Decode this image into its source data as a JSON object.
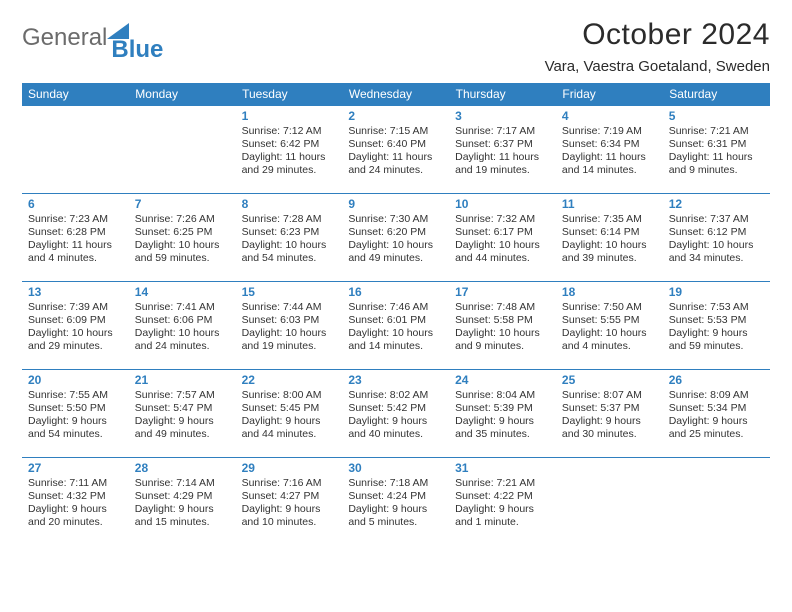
{
  "logo": {
    "general": "General",
    "blue": "Blue"
  },
  "title": "October 2024",
  "location": "Vara, Vaestra Goetaland, Sweden",
  "colors": {
    "accent": "#2f7fbf",
    "text": "#333333",
    "bg": "#ffffff"
  },
  "day_headers": [
    "Sunday",
    "Monday",
    "Tuesday",
    "Wednesday",
    "Thursday",
    "Friday",
    "Saturday"
  ],
  "weeks": [
    [
      null,
      null,
      {
        "n": "1",
        "sr": "Sunrise: 7:12 AM",
        "ss": "Sunset: 6:42 PM",
        "d1": "Daylight: 11 hours",
        "d2": "and 29 minutes."
      },
      {
        "n": "2",
        "sr": "Sunrise: 7:15 AM",
        "ss": "Sunset: 6:40 PM",
        "d1": "Daylight: 11 hours",
        "d2": "and 24 minutes."
      },
      {
        "n": "3",
        "sr": "Sunrise: 7:17 AM",
        "ss": "Sunset: 6:37 PM",
        "d1": "Daylight: 11 hours",
        "d2": "and 19 minutes."
      },
      {
        "n": "4",
        "sr": "Sunrise: 7:19 AM",
        "ss": "Sunset: 6:34 PM",
        "d1": "Daylight: 11 hours",
        "d2": "and 14 minutes."
      },
      {
        "n": "5",
        "sr": "Sunrise: 7:21 AM",
        "ss": "Sunset: 6:31 PM",
        "d1": "Daylight: 11 hours",
        "d2": "and 9 minutes."
      }
    ],
    [
      {
        "n": "6",
        "sr": "Sunrise: 7:23 AM",
        "ss": "Sunset: 6:28 PM",
        "d1": "Daylight: 11 hours",
        "d2": "and 4 minutes."
      },
      {
        "n": "7",
        "sr": "Sunrise: 7:26 AM",
        "ss": "Sunset: 6:25 PM",
        "d1": "Daylight: 10 hours",
        "d2": "and 59 minutes."
      },
      {
        "n": "8",
        "sr": "Sunrise: 7:28 AM",
        "ss": "Sunset: 6:23 PM",
        "d1": "Daylight: 10 hours",
        "d2": "and 54 minutes."
      },
      {
        "n": "9",
        "sr": "Sunrise: 7:30 AM",
        "ss": "Sunset: 6:20 PM",
        "d1": "Daylight: 10 hours",
        "d2": "and 49 minutes."
      },
      {
        "n": "10",
        "sr": "Sunrise: 7:32 AM",
        "ss": "Sunset: 6:17 PM",
        "d1": "Daylight: 10 hours",
        "d2": "and 44 minutes."
      },
      {
        "n": "11",
        "sr": "Sunrise: 7:35 AM",
        "ss": "Sunset: 6:14 PM",
        "d1": "Daylight: 10 hours",
        "d2": "and 39 minutes."
      },
      {
        "n": "12",
        "sr": "Sunrise: 7:37 AM",
        "ss": "Sunset: 6:12 PM",
        "d1": "Daylight: 10 hours",
        "d2": "and 34 minutes."
      }
    ],
    [
      {
        "n": "13",
        "sr": "Sunrise: 7:39 AM",
        "ss": "Sunset: 6:09 PM",
        "d1": "Daylight: 10 hours",
        "d2": "and 29 minutes."
      },
      {
        "n": "14",
        "sr": "Sunrise: 7:41 AM",
        "ss": "Sunset: 6:06 PM",
        "d1": "Daylight: 10 hours",
        "d2": "and 24 minutes."
      },
      {
        "n": "15",
        "sr": "Sunrise: 7:44 AM",
        "ss": "Sunset: 6:03 PM",
        "d1": "Daylight: 10 hours",
        "d2": "and 19 minutes."
      },
      {
        "n": "16",
        "sr": "Sunrise: 7:46 AM",
        "ss": "Sunset: 6:01 PM",
        "d1": "Daylight: 10 hours",
        "d2": "and 14 minutes."
      },
      {
        "n": "17",
        "sr": "Sunrise: 7:48 AM",
        "ss": "Sunset: 5:58 PM",
        "d1": "Daylight: 10 hours",
        "d2": "and 9 minutes."
      },
      {
        "n": "18",
        "sr": "Sunrise: 7:50 AM",
        "ss": "Sunset: 5:55 PM",
        "d1": "Daylight: 10 hours",
        "d2": "and 4 minutes."
      },
      {
        "n": "19",
        "sr": "Sunrise: 7:53 AM",
        "ss": "Sunset: 5:53 PM",
        "d1": "Daylight: 9 hours",
        "d2": "and 59 minutes."
      }
    ],
    [
      {
        "n": "20",
        "sr": "Sunrise: 7:55 AM",
        "ss": "Sunset: 5:50 PM",
        "d1": "Daylight: 9 hours",
        "d2": "and 54 minutes."
      },
      {
        "n": "21",
        "sr": "Sunrise: 7:57 AM",
        "ss": "Sunset: 5:47 PM",
        "d1": "Daylight: 9 hours",
        "d2": "and 49 minutes."
      },
      {
        "n": "22",
        "sr": "Sunrise: 8:00 AM",
        "ss": "Sunset: 5:45 PM",
        "d1": "Daylight: 9 hours",
        "d2": "and 44 minutes."
      },
      {
        "n": "23",
        "sr": "Sunrise: 8:02 AM",
        "ss": "Sunset: 5:42 PM",
        "d1": "Daylight: 9 hours",
        "d2": "and 40 minutes."
      },
      {
        "n": "24",
        "sr": "Sunrise: 8:04 AM",
        "ss": "Sunset: 5:39 PM",
        "d1": "Daylight: 9 hours",
        "d2": "and 35 minutes."
      },
      {
        "n": "25",
        "sr": "Sunrise: 8:07 AM",
        "ss": "Sunset: 5:37 PM",
        "d1": "Daylight: 9 hours",
        "d2": "and 30 minutes."
      },
      {
        "n": "26",
        "sr": "Sunrise: 8:09 AM",
        "ss": "Sunset: 5:34 PM",
        "d1": "Daylight: 9 hours",
        "d2": "and 25 minutes."
      }
    ],
    [
      {
        "n": "27",
        "sr": "Sunrise: 7:11 AM",
        "ss": "Sunset: 4:32 PM",
        "d1": "Daylight: 9 hours",
        "d2": "and 20 minutes."
      },
      {
        "n": "28",
        "sr": "Sunrise: 7:14 AM",
        "ss": "Sunset: 4:29 PM",
        "d1": "Daylight: 9 hours",
        "d2": "and 15 minutes."
      },
      {
        "n": "29",
        "sr": "Sunrise: 7:16 AM",
        "ss": "Sunset: 4:27 PM",
        "d1": "Daylight: 9 hours",
        "d2": "and 10 minutes."
      },
      {
        "n": "30",
        "sr": "Sunrise: 7:18 AM",
        "ss": "Sunset: 4:24 PM",
        "d1": "Daylight: 9 hours",
        "d2": "and 5 minutes."
      },
      {
        "n": "31",
        "sr": "Sunrise: 7:21 AM",
        "ss": "Sunset: 4:22 PM",
        "d1": "Daylight: 9 hours",
        "d2": "and 1 minute."
      },
      null,
      null
    ]
  ]
}
